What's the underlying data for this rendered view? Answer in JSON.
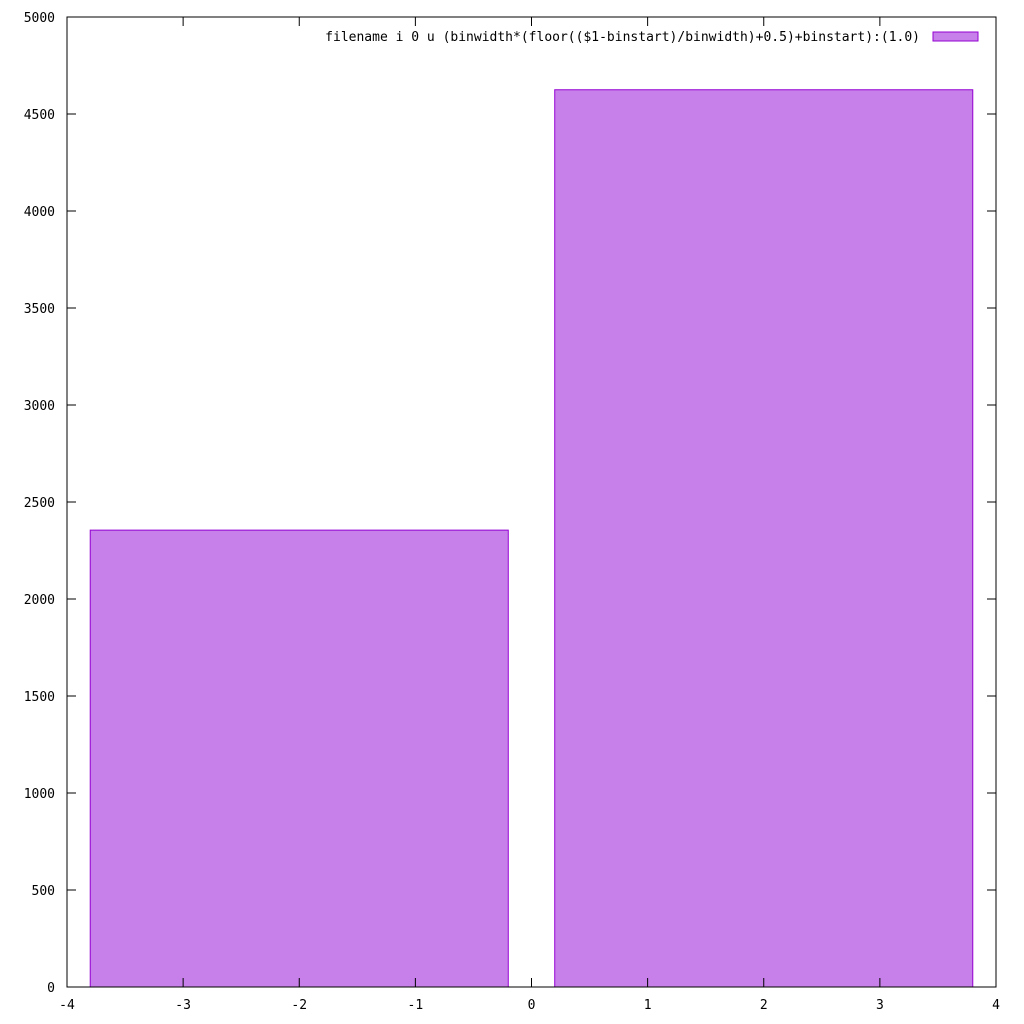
{
  "chart_data": {
    "type": "bar",
    "title": "",
    "xlabel": "",
    "ylabel": "",
    "xlim": [
      -4,
      4
    ],
    "ylim": [
      0,
      5000
    ],
    "x_ticks": [
      "-4",
      "-3",
      "-2",
      "-1",
      "0",
      "1",
      "2",
      "3",
      "4"
    ],
    "y_ticks": [
      "0",
      "500",
      "1000",
      "1500",
      "2000",
      "2500",
      "3000",
      "3500",
      "4000",
      "4500",
      "5000"
    ],
    "grid": false,
    "legend_position": "top-right",
    "series": [
      {
        "name": "filename i 0 u (binwidth*(floor(($1-binstart)/binwidth)+0.5)+binstart):(1.0)",
        "color": "#c77fea",
        "edge_color": "#9400d3",
        "bars": [
          {
            "x_start": -3.8,
            "x_end": -0.2,
            "value": 2355
          },
          {
            "x_start": 0.2,
            "x_end": 3.8,
            "value": 4625
          }
        ]
      }
    ]
  }
}
